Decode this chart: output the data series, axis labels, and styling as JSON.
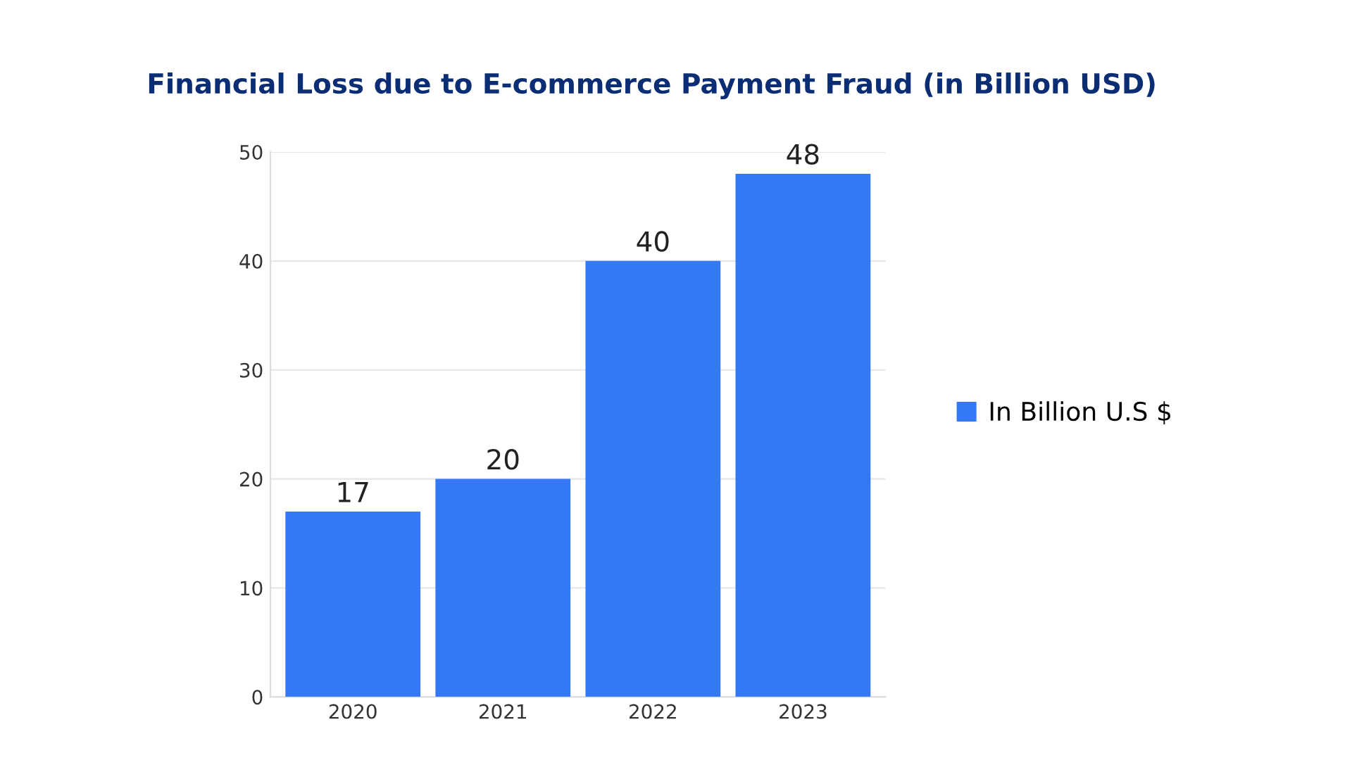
{
  "chart_data": {
    "type": "bar",
    "title": "Financial Loss due to E-commerce Payment Fraud (in Billion USD)",
    "categories": [
      "2020",
      "2021",
      "2022",
      "2023"
    ],
    "series": [
      {
        "name": "In Billion U.S $",
        "color": "#3478f6",
        "values": [
          17,
          20,
          40,
          48
        ]
      }
    ],
    "ylim": [
      0,
      50
    ],
    "yticks": [
      0,
      10,
      20,
      30,
      40,
      50
    ],
    "grid": "y",
    "legend": "right",
    "data_labels": true
  }
}
